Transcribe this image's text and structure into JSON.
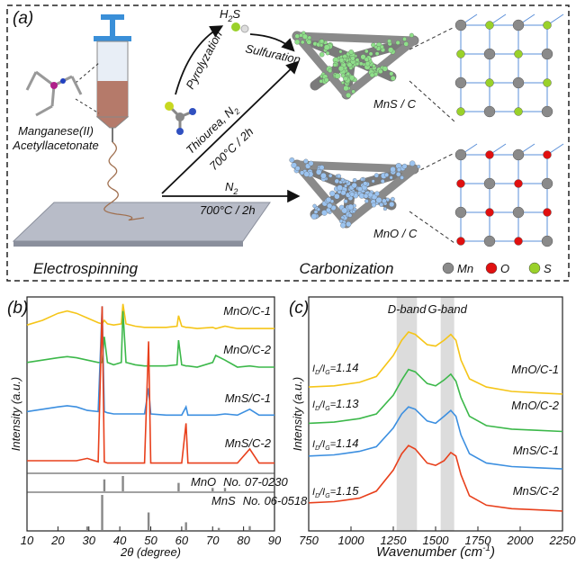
{
  "panel_a": {
    "label": "(a)",
    "h2s": [
      "H",
      "2",
      "S"
    ],
    "pyrolyzation": "Pyrolyzation",
    "sulfuration": "Sulfuration",
    "mns": "MnS / C",
    "precursor": [
      "Manganese(II)",
      "Acetyllacetonate"
    ],
    "thiourea": [
      "Thiourea, N",
      "2"
    ],
    "temp1": "700°C / 2h",
    "n2": [
      "N",
      "2"
    ],
    "temp2": "700°C / 2h",
    "mno": "MnO / C",
    "electrospinning": "Electrospinning",
    "carbonization": "Carbonization",
    "legend": [
      {
        "name": "Mn",
        "color": "#8a8a8a"
      },
      {
        "name": "O",
        "color": "#e01010"
      },
      {
        "name": "S",
        "color": "#9ad12a"
      }
    ]
  },
  "chart_data": [
    {
      "type": "line",
      "label": "(b)",
      "ylabel": "Intensity (a.u.)",
      "xlabel": "2θ (degree)",
      "xlim": [
        10,
        90
      ],
      "xticks": [
        10,
        20,
        30,
        40,
        50,
        60,
        70,
        80,
        90
      ],
      "ylim": [
        0,
        100
      ],
      "x": [
        10,
        15,
        20,
        23,
        26,
        29.5,
        33,
        34.3,
        35,
        36,
        38,
        40.5,
        41,
        42,
        45,
        48,
        49.3,
        50,
        55,
        58.5,
        59,
        60,
        61.4,
        62,
        65,
        70,
        71,
        74,
        78,
        82,
        85,
        90
      ],
      "series": [
        {
          "name": "MnO/C-1",
          "color": "#f5c518",
          "values": [
            88,
            90,
            93,
            94,
            93,
            91,
            89,
            88.5,
            90,
            88.5,
            88,
            88.5,
            97,
            88.5,
            87.5,
            87,
            87,
            87,
            87,
            87.5,
            92,
            87.5,
            87,
            87,
            86.5,
            87,
            86.5,
            87.5,
            86.5,
            86.5,
            86.5,
            86.5
          ]
        },
        {
          "name": "MnO/C-2",
          "color": "#3cb84a",
          "values": [
            72,
            73,
            74,
            74.5,
            74,
            73,
            72,
            72,
            83,
            72,
            71,
            72,
            94,
            72,
            71,
            70.5,
            70.5,
            70.5,
            70.5,
            71,
            81.5,
            71,
            70.5,
            70.5,
            70,
            72,
            75,
            73,
            70,
            70.5,
            70,
            70
          ]
        },
        {
          "name": "MnS/C-1",
          "color": "#3c8fe0",
          "values": [
            51,
            52,
            53,
            53.5,
            53,
            51.5,
            51,
            96,
            51,
            50.5,
            50,
            50,
            50,
            50,
            50,
            50,
            61,
            50,
            49.5,
            49.5,
            49.5,
            49.5,
            53,
            49.5,
            49.5,
            49.5,
            49.5,
            50,
            49.5,
            52,
            49.5,
            49.5
          ]
        },
        {
          "name": "MnS/C-2",
          "color": "#e8401c",
          "values": [
            30,
            30,
            30,
            30,
            30,
            31,
            29.5,
            96,
            29.5,
            29,
            29,
            29,
            29,
            29,
            29,
            29,
            81,
            29,
            29,
            29,
            29,
            29,
            46,
            29,
            29,
            29,
            29,
            29,
            29,
            35,
            29,
            29
          ]
        }
      ],
      "references": [
        {
          "name": "MnO",
          "card": "No. 07-0230",
          "color": "#888888",
          "peaks": [
            35,
            41,
            59,
            70,
            74
          ],
          "intensity": [
            78,
            100,
            55,
            22,
            22
          ]
        },
        {
          "name": "MnS",
          "card": "No. 06-0518",
          "color": "#888888",
          "peaks": [
            29.5,
            34.3,
            49.3,
            61.4,
            72,
            82
          ],
          "intensity": [
            10,
            100,
            50,
            22,
            6,
            11
          ]
        }
      ]
    },
    {
      "type": "line",
      "label": "(c)",
      "ylabel": "Intensity (a.u.)",
      "xlabel": [
        "Wavenumber (cm",
        "-1",
        ")"
      ],
      "xlim": [
        750,
        2250
      ],
      "xticks": [
        750,
        1000,
        1250,
        1500,
        1750,
        2000,
        2250
      ],
      "ylim": [
        0,
        100
      ],
      "bands": [
        {
          "label": "D-band",
          "range": [
            1270,
            1390
          ]
        },
        {
          "label": "G-band",
          "range": [
            1530,
            1610
          ]
        }
      ],
      "ratio_label": [
        "I",
        "D",
        "/I",
        "G",
        "="
      ],
      "x": [
        750,
        900,
        1050,
        1150,
        1250,
        1300,
        1340,
        1380,
        1450,
        1500,
        1550,
        1590,
        1620,
        1650,
        1700,
        1800,
        1950,
        2100,
        2250
      ],
      "series": [
        {
          "name": "MnO/C-1",
          "ratio": "1.14",
          "color": "#f5c518",
          "values": [
            61.5,
            62,
            63.5,
            66,
            75,
            81.5,
            85,
            84,
            79.6,
            79,
            81.5,
            84,
            81.5,
            73,
            65,
            61.5,
            59.6,
            59,
            58.5
          ]
        },
        {
          "name": "MnO/C-2",
          "ratio": "1.13",
          "color": "#3cb84a",
          "values": [
            46,
            46.5,
            48,
            50,
            58,
            64.5,
            69,
            68,
            63,
            62,
            64.5,
            67,
            64,
            57,
            49,
            45,
            43.5,
            43,
            42.5
          ]
        },
        {
          "name": "MnS/C-1",
          "ratio": "1.14",
          "color": "#3c8fe0",
          "values": [
            32,
            32.5,
            34,
            36,
            44,
            50,
            53,
            52,
            47,
            46,
            49,
            51.5,
            49,
            41,
            33,
            29,
            27.5,
            27,
            26.5
          ]
        },
        {
          "name": "MnS/C-2",
          "ratio": "1.15",
          "color": "#e8401c",
          "values": [
            12,
            12.5,
            14,
            17,
            26,
            33,
            36.5,
            35,
            29,
            28,
            30,
            33.5,
            32,
            24,
            15,
            11,
            9.5,
            9,
            8.5
          ]
        }
      ]
    }
  ]
}
